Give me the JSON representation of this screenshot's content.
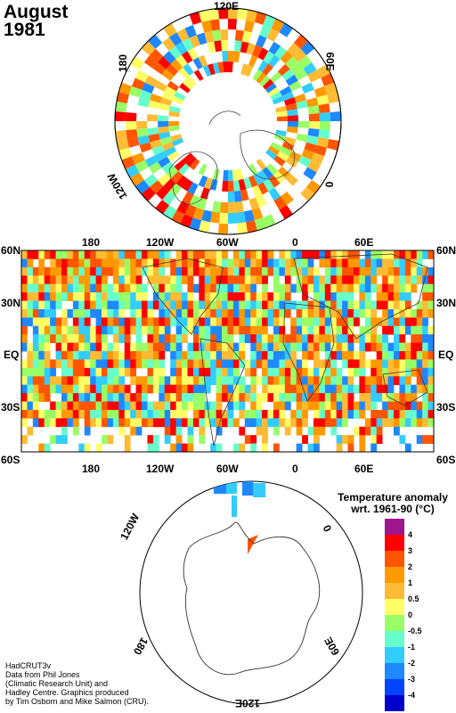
{
  "title": {
    "month": "August",
    "year": "1981"
  },
  "north_polar": {
    "labels": [
      "120E",
      "180",
      "60E",
      "120W",
      "0"
    ]
  },
  "map": {
    "lat_left": [
      "60N",
      "30N",
      "EQ",
      "30S",
      "60S"
    ],
    "lat_right": [
      "60N",
      "30N",
      "EQ",
      "30S",
      "60S"
    ],
    "lon_top": [
      "180",
      "120W",
      "60W",
      "0",
      "60E"
    ],
    "lon_bottom": [
      "180",
      "120W",
      "60W",
      "0",
      "60E"
    ]
  },
  "south_polar": {
    "labels": [
      "120W",
      "0",
      "180",
      "60E",
      "120E"
    ]
  },
  "legend": {
    "title_line1": "Temperature anomaly",
    "title_line2": "wrt. 1961-90  (°C)",
    "ticks": [
      "4",
      "3",
      "2",
      "1",
      "0.5",
      "0",
      "-0.5",
      "-1",
      "-2",
      "-3",
      "-4"
    ],
    "colors": [
      "#a0168c",
      "#ff0000",
      "#ff5500",
      "#ff9900",
      "#ffbb33",
      "#ffff66",
      "#99ff66",
      "#66ffcc",
      "#33ccff",
      "#1e88ff",
      "#0044ff",
      "#0000cc"
    ]
  },
  "credits": [
    "HadCRUT3v",
    "Data from Phil Jones",
    "(Climatic Research Unit) and",
    "Hadley Centre.  Graphics produced",
    "by Tim Osborn and Mike Salmon (CRU)."
  ]
}
